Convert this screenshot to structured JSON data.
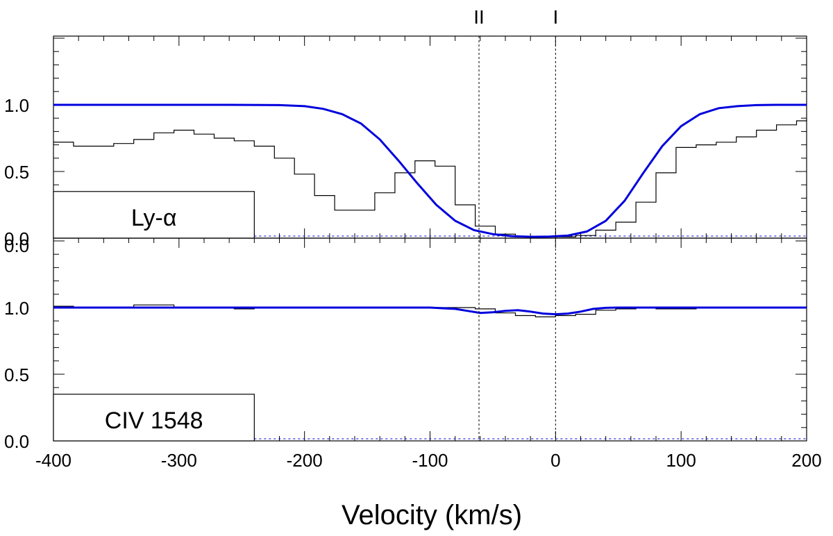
{
  "colors": {
    "model": "#0000dd",
    "data": "#000000",
    "baseline": "#0000dd"
  },
  "xaxis": {
    "label": "Velocity (km/s)",
    "range": [
      -400,
      200
    ],
    "ticks": [
      -400,
      -300,
      -200,
      -100,
      0,
      100,
      200
    ]
  },
  "chart_data": [
    {
      "type": "line",
      "panel": "top",
      "label": "Ly-α",
      "ylim": [
        0,
        1.5
      ],
      "yticks": [
        0.0,
        0.5,
        1.0
      ],
      "ytick_labels": [
        "0.0",
        "0.5",
        "1.0"
      ],
      "components": [
        {
          "name": "II",
          "velocity": -61
        },
        {
          "name": "I",
          "velocity": 0
        }
      ],
      "data_step": {
        "x": [
          -400,
          -384,
          -368,
          -352,
          -336,
          -320,
          -304,
          -288,
          -272,
          -256,
          -240,
          -224,
          -208,
          -192,
          -176,
          -160,
          -144,
          -128,
          -112,
          -96,
          -80,
          -64,
          -48,
          -32,
          -16,
          0,
          16,
          32,
          48,
          64,
          80,
          96,
          112,
          128,
          144,
          160,
          176,
          192,
          200
        ],
        "y": [
          0.72,
          0.69,
          0.69,
          0.71,
          0.74,
          0.79,
          0.81,
          0.78,
          0.75,
          0.73,
          0.69,
          0.6,
          0.48,
          0.32,
          0.21,
          0.21,
          0.34,
          0.49,
          0.58,
          0.54,
          0.25,
          0.09,
          0.03,
          0.01,
          0.01,
          0.01,
          0.02,
          0.06,
          0.12,
          0.27,
          0.49,
          0.68,
          0.7,
          0.72,
          0.76,
          0.81,
          0.85,
          0.88,
          0.89
        ]
      },
      "model": {
        "x": [
          -400,
          -260,
          -220,
          -200,
          -185,
          -170,
          -155,
          -140,
          -125,
          -110,
          -95,
          -80,
          -65,
          -50,
          -35,
          -20,
          -5,
          10,
          25,
          40,
          55,
          70,
          85,
          100,
          115,
          130,
          145,
          160,
          175,
          200
        ],
        "y": [
          1.0,
          1.0,
          0.998,
          0.99,
          0.97,
          0.93,
          0.86,
          0.74,
          0.58,
          0.41,
          0.25,
          0.13,
          0.06,
          0.03,
          0.015,
          0.01,
          0.012,
          0.02,
          0.05,
          0.13,
          0.28,
          0.49,
          0.69,
          0.84,
          0.93,
          0.975,
          0.99,
          0.998,
          1.0,
          1.0
        ]
      }
    },
    {
      "type": "line",
      "panel": "bottom",
      "label": "CIV 1548",
      "ylim": [
        0,
        1.5
      ],
      "yticks": [
        0.0,
        0.5,
        1.0
      ],
      "ytick_labels": [
        "0.0",
        "0.5",
        "1.0"
      ],
      "extra_tick_label": "0.0",
      "data_step": {
        "x": [
          -400,
          -384,
          -368,
          -352,
          -336,
          -320,
          -304,
          -288,
          -272,
          -256,
          -240,
          -224,
          -208,
          -192,
          -176,
          -160,
          -144,
          -128,
          -112,
          -96,
          -80,
          -64,
          -48,
          -32,
          -16,
          0,
          16,
          32,
          48,
          64,
          80,
          96,
          112,
          128,
          144,
          160,
          176,
          192,
          200
        ],
        "y": [
          1.01,
          1.0,
          1.0,
          1.0,
          1.02,
          1.02,
          1.0,
          1.0,
          1.0,
          0.99,
          1.0,
          1.0,
          1.0,
          1.0,
          1.0,
          1.0,
          1.0,
          1.0,
          1.0,
          1.0,
          1.0,
          0.99,
          0.96,
          0.94,
          0.93,
          0.94,
          0.95,
          0.98,
          0.99,
          1.0,
          0.99,
          0.99,
          1.0,
          1.0,
          1.0,
          1.0,
          1.0,
          1.0,
          1.01
        ]
      },
      "model": {
        "x": [
          -400,
          -100,
          -80,
          -70,
          -60,
          -50,
          -40,
          -30,
          -20,
          -10,
          0,
          10,
          20,
          30,
          40,
          50,
          200
        ],
        "y": [
          1.0,
          1.0,
          0.99,
          0.975,
          0.96,
          0.965,
          0.975,
          0.98,
          0.97,
          0.955,
          0.95,
          0.955,
          0.97,
          0.99,
          0.998,
          1.0,
          1.0
        ]
      }
    }
  ]
}
